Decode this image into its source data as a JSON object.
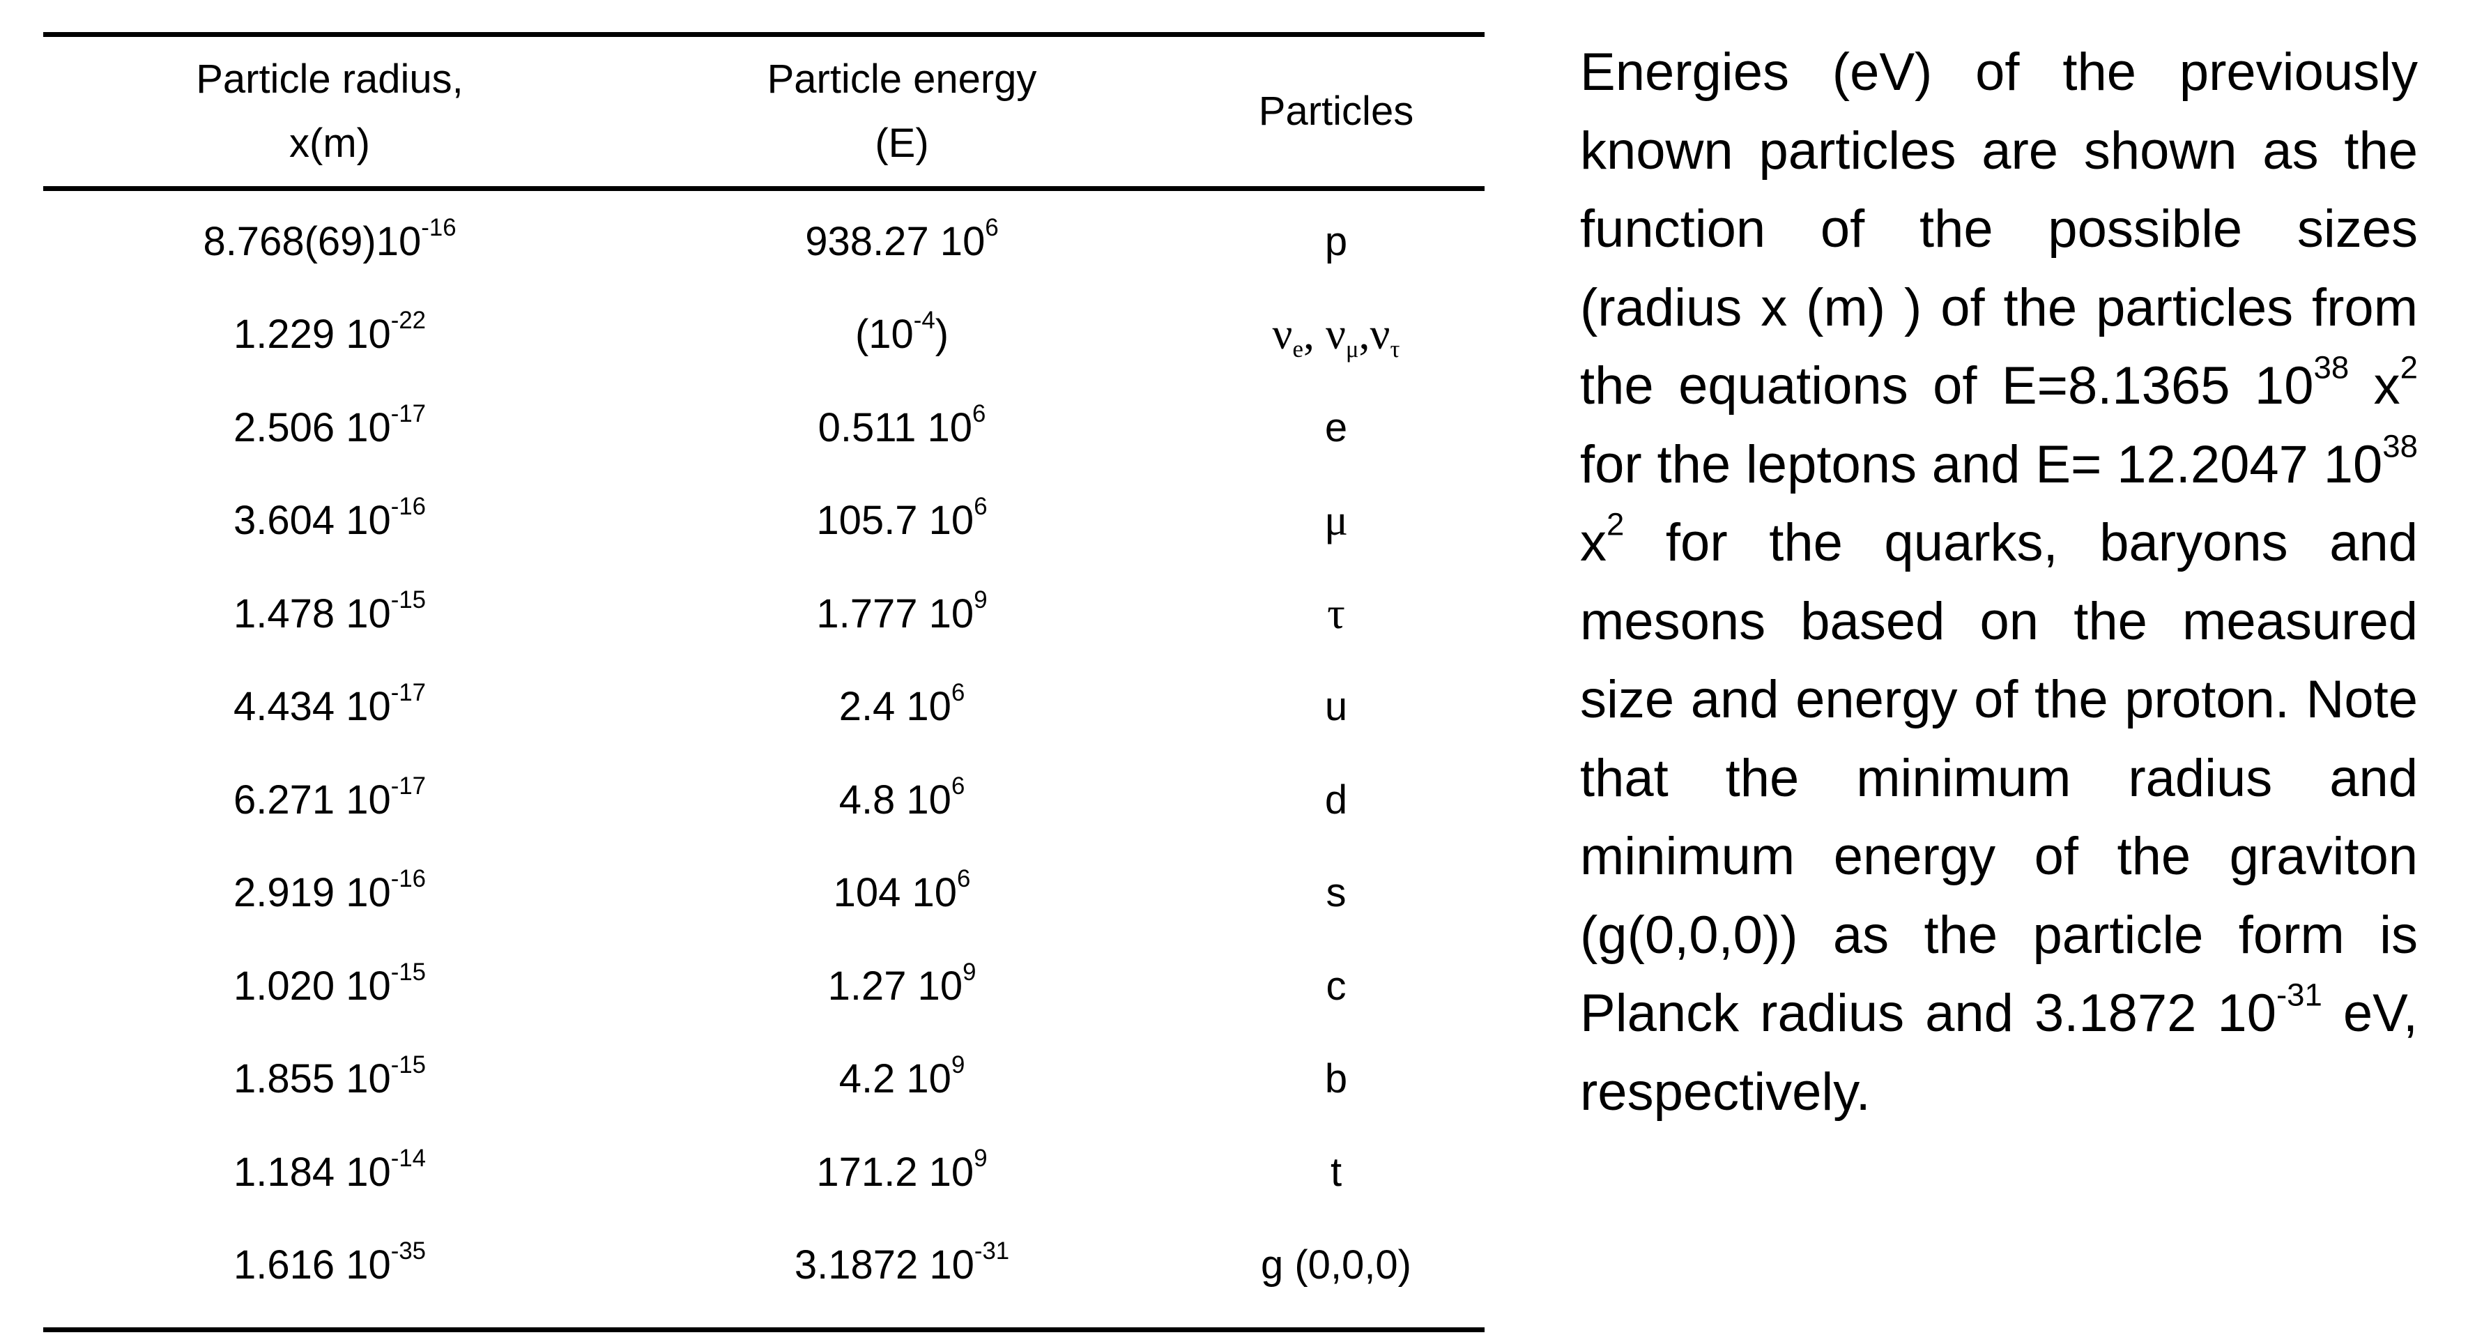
{
  "table": {
    "headers": [
      [
        "Particle radius,",
        "x(m)"
      ],
      [
        "Particle energy",
        "(E)"
      ],
      [
        "Particles"
      ]
    ],
    "rows": [
      [
        [
          {
            "t": "8.768(69)10"
          },
          {
            "sup": "-16"
          }
        ],
        [
          {
            "t": "938.27 10"
          },
          {
            "sup": "6"
          }
        ],
        [
          {
            "t": "p"
          }
        ]
      ],
      [
        [
          {
            "t": "1.229 10"
          },
          {
            "sup": "-22"
          }
        ],
        [
          {
            "t": "(10"
          },
          {
            "sup": "-4"
          },
          {
            "t": ")"
          }
        ],
        [
          {
            "g": "ν"
          },
          {
            "sub": "e"
          },
          {
            "g": ", ν"
          },
          {
            "sub": "μ"
          },
          {
            "g": ",ν"
          },
          {
            "sub": "τ"
          }
        ]
      ],
      [
        [
          {
            "t": "2.506 10"
          },
          {
            "sup": "-17"
          }
        ],
        [
          {
            "t": "0.511 10"
          },
          {
            "sup": "6"
          }
        ],
        [
          {
            "t": "e"
          }
        ]
      ],
      [
        [
          {
            "t": "3.604 10"
          },
          {
            "sup": "-16"
          }
        ],
        [
          {
            "t": "105.7 10"
          },
          {
            "sup": "6"
          }
        ],
        [
          {
            "g": "μ"
          }
        ]
      ],
      [
        [
          {
            "t": "1.478 10"
          },
          {
            "sup": "-15"
          }
        ],
        [
          {
            "t": "1.777 10"
          },
          {
            "sup": "9"
          }
        ],
        [
          {
            "g": "τ"
          }
        ]
      ],
      [
        [
          {
            "t": "4.434 10"
          },
          {
            "sup": "-17"
          }
        ],
        [
          {
            "t": "2.4 10"
          },
          {
            "sup": "6"
          }
        ],
        [
          {
            "t": "u"
          }
        ]
      ],
      [
        [
          {
            "t": "6.271 10"
          },
          {
            "sup": "-17"
          }
        ],
        [
          {
            "t": "4.8 10"
          },
          {
            "sup": "6"
          }
        ],
        [
          {
            "t": "d"
          }
        ]
      ],
      [
        [
          {
            "t": "2.919 10"
          },
          {
            "sup": "-16"
          }
        ],
        [
          {
            "t": "104 10"
          },
          {
            "sup": "6"
          }
        ],
        [
          {
            "t": "s"
          }
        ]
      ],
      [
        [
          {
            "t": "1.020 10"
          },
          {
            "sup": "-15"
          }
        ],
        [
          {
            "t": "1.27 10"
          },
          {
            "sup": "9"
          }
        ],
        [
          {
            "t": "c"
          }
        ]
      ],
      [
        [
          {
            "t": "1.855 10"
          },
          {
            "sup": "-15"
          }
        ],
        [
          {
            "t": "4.2 10"
          },
          {
            "sup": "9"
          }
        ],
        [
          {
            "t": "b"
          }
        ]
      ],
      [
        [
          {
            "t": "1.184 10"
          },
          {
            "sup": "-14"
          }
        ],
        [
          {
            "t": "171.2 10"
          },
          {
            "sup": "9"
          }
        ],
        [
          {
            "t": "t"
          }
        ]
      ],
      [
        [
          {
            "t": "1.616 10"
          },
          {
            "sup": "-35"
          }
        ],
        [
          {
            "t": "3.1872 10"
          },
          {
            "sup": "-31"
          }
        ],
        [
          {
            "t": "g (0,0,0)"
          }
        ]
      ]
    ]
  },
  "paragraph": [
    {
      "t": "Energies (eV) of the previously known particles are shown as the function of the possible sizes (radius x (m) ) of the particles from the equations of E=8.1365 10"
    },
    {
      "sup": "38"
    },
    {
      "t": " x"
    },
    {
      "sup": "2"
    },
    {
      "t": " for the leptons and E= 12.2047 10"
    },
    {
      "sup": "38"
    },
    {
      "t": " x"
    },
    {
      "sup": "2"
    },
    {
      "t": " for the quarks, baryons and mesons based on the measured size and energy of the proton. Note that the minimum radius and minimum energy of the graviton (g(0,0,0)) as the particle form is Planck radius and 3.1872 10"
    },
    {
      "sup": "-31"
    },
    {
      "t": " eV, respectively."
    }
  ]
}
